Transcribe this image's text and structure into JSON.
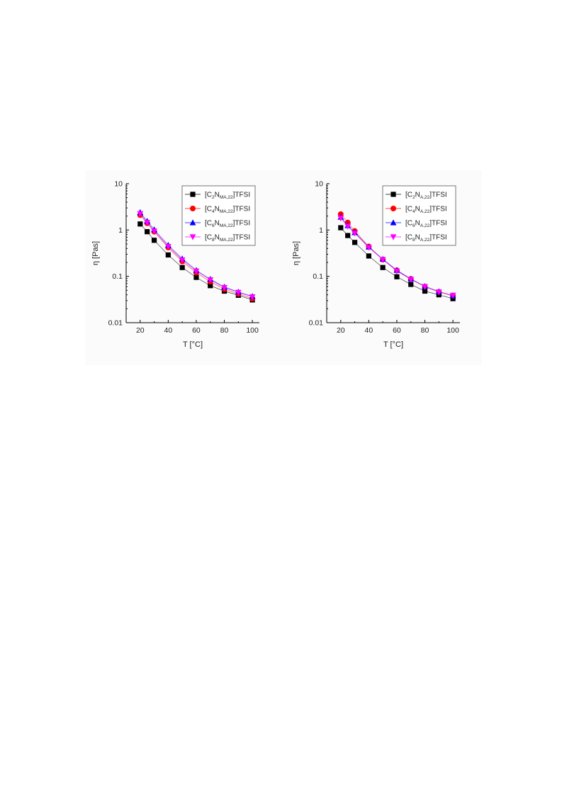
{
  "chart_data": [
    {
      "type": "scatter",
      "xlabel": "T [°C]",
      "ylabel": "η [Pas]",
      "xlim": [
        10,
        105
      ],
      "ylim": [
        0.01,
        10
      ],
      "yscale": "log",
      "xticks": [
        "20",
        "40",
        "60",
        "80",
        "100"
      ],
      "yticks": [
        "0.01",
        "0.1",
        "1",
        "10"
      ],
      "legend_position": "top-right",
      "x": [
        20,
        25,
        30,
        40,
        50,
        60,
        70,
        80,
        90,
        100
      ],
      "series": [
        {
          "name": "[C2NMA,22]TFSI",
          "label_parts": [
            "[C",
            "2",
            "N",
            "MA,22",
            "]TFSI"
          ],
          "marker": "square",
          "color": "#000000",
          "values": [
            1.35,
            0.92,
            0.6,
            0.29,
            0.155,
            0.095,
            0.063,
            0.048,
            0.039,
            0.031
          ]
        },
        {
          "name": "[C4NMA,22]TFSI",
          "label_parts": [
            "[C",
            "4",
            "N",
            "MA,22",
            "]TFSI"
          ],
          "marker": "circle",
          "color": "#ff0000",
          "values": [
            2.1,
            1.4,
            0.92,
            0.42,
            0.21,
            0.12,
            0.077,
            0.053,
            0.042,
            0.033
          ]
        },
        {
          "name": "[C6NMA,22]TFSI",
          "label_parts": [
            "[C",
            "6",
            "N",
            "MA,22",
            "]TFSI"
          ],
          "marker": "triangle-up",
          "color": "#0000ff",
          "values": [
            2.4,
            1.55,
            1.02,
            0.47,
            0.24,
            0.135,
            0.087,
            0.059,
            0.046,
            0.037
          ]
        },
        {
          "name": "[C8NMA,22]TFSI",
          "label_parts": [
            "[C",
            "8",
            "N",
            "MA,22",
            "]TFSI"
          ],
          "marker": "triangle-down",
          "color": "#ff00ff",
          "values": [
            2.25,
            1.45,
            0.95,
            0.44,
            0.225,
            0.13,
            0.084,
            0.057,
            0.045,
            0.036
          ]
        }
      ]
    },
    {
      "type": "scatter",
      "xlabel": "T [°C]",
      "ylabel": "η [Pas]",
      "xlim": [
        10,
        105
      ],
      "ylim": [
        0.01,
        10
      ],
      "yscale": "log",
      "xticks": [
        "20",
        "40",
        "60",
        "80",
        "100"
      ],
      "yticks": [
        "0.01",
        "0.1",
        "1",
        "10"
      ],
      "legend_position": "top-right",
      "x": [
        20,
        25,
        30,
        40,
        50,
        60,
        70,
        80,
        90,
        100
      ],
      "series": [
        {
          "name": "[C2NA,22]TFSI",
          "label_parts": [
            "[C",
            "2",
            "N",
            "A,22",
            "]TFSI"
          ],
          "marker": "square",
          "color": "#000000",
          "values": [
            1.12,
            0.76,
            0.54,
            0.275,
            0.155,
            0.098,
            0.067,
            0.048,
            0.04,
            0.033
          ]
        },
        {
          "name": "[C4NA,22]TFSI",
          "label_parts": [
            "[C",
            "4",
            "N",
            "A,22",
            "]TFSI"
          ],
          "marker": "circle",
          "color": "#ff0000",
          "values": [
            2.2,
            1.45,
            0.95,
            0.44,
            0.23,
            0.135,
            0.088,
            0.06,
            0.046,
            0.038
          ]
        },
        {
          "name": "[C6NA,22]TFSI",
          "label_parts": [
            "[C",
            "6",
            "N",
            "A,22",
            "]TFSI"
          ],
          "marker": "triangle-up",
          "color": "#0000ff",
          "values": [
            1.9,
            1.25,
            0.88,
            0.43,
            0.235,
            0.135,
            0.088,
            0.061,
            0.047,
            0.038
          ]
        },
        {
          "name": "[C8NA,22]TFSI",
          "label_parts": [
            "[C",
            "8",
            "N",
            "A,22",
            "]TFSI"
          ],
          "marker": "triangle-down",
          "color": "#ff00ff",
          "values": [
            1.8,
            1.2,
            0.85,
            0.42,
            0.23,
            0.13,
            0.086,
            0.06,
            0.046,
            0.039
          ]
        }
      ]
    }
  ]
}
